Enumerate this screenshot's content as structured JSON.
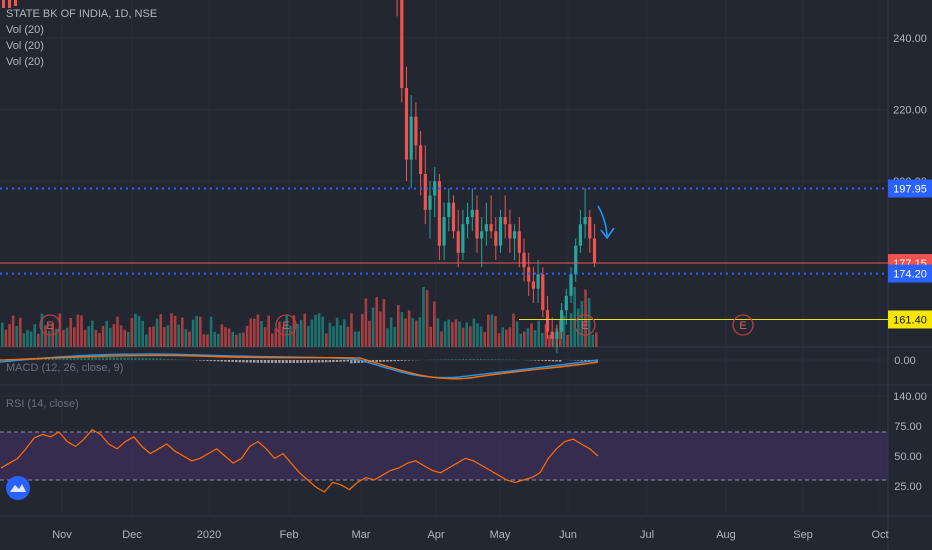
{
  "header": {
    "symbol": "STATE BK OF INDIA, 1D, NSE",
    "studies": [
      "Vol (20)",
      "Vol (20)",
      "Vol (20)"
    ]
  },
  "colors": {
    "background": "#222732",
    "up": "#26a69a",
    "down": "#ef5350",
    "grid": "#2a2e39",
    "axis_text": "#b2b5be",
    "level_blue": "#2962ff",
    "level_red": "#ef5350",
    "level_yellow": "#f0e000",
    "macd_line": "#2196f3",
    "signal_line": "#ff6d00",
    "rsi_line": "#ff6d00",
    "rsi_band": "#3a2e55"
  },
  "price_axis": {
    "ticks": [
      "240.00",
      "220.00",
      "200.00",
      "140.00"
    ],
    "tick_values": [
      240,
      220,
      200,
      140
    ]
  },
  "time_axis": {
    "labels": [
      "Nov",
      "Dec",
      "2020",
      "Feb",
      "Mar",
      "Apr",
      "May",
      "Jun",
      "Jul",
      "Aug",
      "Sep",
      "Oct"
    ]
  },
  "levels": [
    {
      "name": "resistance",
      "value": 197.95,
      "label": "197.95",
      "style": "dotted",
      "color": "#2962ff"
    },
    {
      "name": "last-price",
      "value": 177.15,
      "label": "177.15",
      "style": "solid",
      "color": "#ef5350"
    },
    {
      "name": "support",
      "value": 174.2,
      "label": "174.20",
      "style": "dotted",
      "color": "#2962ff"
    },
    {
      "name": "target",
      "value": 161.4,
      "label": "161.40",
      "style": "solid",
      "color": "#f0e000"
    }
  ],
  "earnings_markers": [
    {
      "label": "E"
    },
    {
      "label": "E"
    },
    {
      "label": "E"
    },
    {
      "label": "E"
    }
  ],
  "macd": {
    "label": "MACD (12, 26, close, 9)",
    "ticks": [
      "0.00"
    ]
  },
  "rsi": {
    "label": "RSI (14, close)",
    "ticks": [
      "75.00",
      "50.00",
      "25.00"
    ],
    "upper": 70,
    "lower": 30
  },
  "chart_data": {
    "type": "candlestick",
    "title": "STATE BK OF INDIA, 1D, NSE",
    "price_range": [
      130,
      250
    ],
    "candles": [
      [
        295,
        305,
        290,
        300
      ],
      [
        300,
        308,
        296,
        304
      ],
      [
        304,
        310,
        298,
        302
      ],
      [
        268,
        272,
        246,
        252
      ],
      [
        252,
        256,
        222,
        226
      ],
      [
        226,
        232,
        200,
        206
      ],
      [
        206,
        224,
        198,
        218
      ],
      [
        218,
        222,
        206,
        210
      ],
      [
        210,
        214,
        196,
        202
      ],
      [
        202,
        210,
        188,
        192
      ],
      [
        192,
        200,
        184,
        196
      ],
      [
        196,
        204,
        190,
        200
      ],
      [
        200,
        202,
        178,
        182
      ],
      [
        182,
        194,
        178,
        190
      ],
      [
        190,
        198,
        186,
        194
      ],
      [
        194,
        196,
        184,
        186
      ],
      [
        186,
        192,
        176,
        180
      ],
      [
        180,
        192,
        178,
        188
      ],
      [
        188,
        194,
        184,
        190
      ],
      [
        190,
        198,
        186,
        192
      ],
      [
        192,
        196,
        180,
        184
      ],
      [
        184,
        190,
        176,
        186
      ],
      [
        186,
        194,
        182,
        188
      ],
      [
        188,
        196,
        184,
        186
      ],
      [
        186,
        190,
        178,
        182
      ],
      [
        182,
        192,
        180,
        190
      ],
      [
        190,
        196,
        184,
        188
      ],
      [
        188,
        192,
        180,
        184
      ],
      [
        184,
        188,
        178,
        186
      ],
      [
        186,
        190,
        176,
        180
      ],
      [
        180,
        184,
        172,
        176
      ],
      [
        176,
        180,
        168,
        172
      ],
      [
        172,
        176,
        166,
        170
      ],
      [
        170,
        178,
        166,
        174
      ],
      [
        174,
        176,
        162,
        164
      ],
      [
        164,
        168,
        156,
        158
      ],
      [
        158,
        162,
        154,
        156
      ],
      [
        156,
        160,
        152,
        158
      ],
      [
        158,
        166,
        156,
        164
      ],
      [
        164,
        170,
        160,
        168
      ],
      [
        168,
        176,
        166,
        174
      ],
      [
        174,
        184,
        172,
        182
      ],
      [
        182,
        192,
        180,
        188
      ],
      [
        188,
        198,
        184,
        190
      ],
      [
        190,
        192,
        180,
        184
      ],
      [
        184,
        188,
        176,
        177.15
      ]
    ],
    "volume_note": "volume bars shown in lower section of main pane",
    "rsi_values": [
      40,
      44,
      48,
      56,
      65,
      68,
      66,
      70,
      62,
      58,
      64,
      72,
      68,
      60,
      56,
      62,
      66,
      58,
      52,
      56,
      60,
      54,
      50,
      46,
      48,
      52,
      56,
      50,
      44,
      48,
      58,
      62,
      56,
      48,
      52,
      44,
      36,
      30,
      24,
      20,
      28,
      26,
      22,
      28,
      32,
      30,
      34,
      38,
      40,
      44,
      46,
      42,
      38,
      36,
      40,
      44,
      48,
      46,
      42,
      38,
      34,
      30,
      28,
      30,
      32,
      36,
      48,
      56,
      62,
      64,
      60,
      56,
      50
    ]
  }
}
